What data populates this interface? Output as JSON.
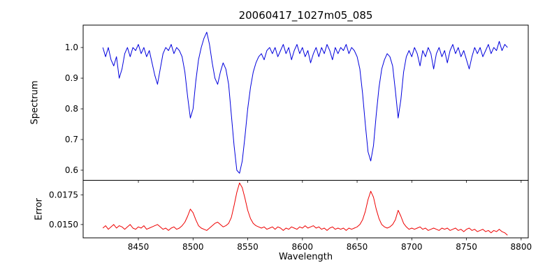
{
  "chart_data": {
    "type": "line",
    "title": "20060417_1027m05_085",
    "xlabel": "Wavelength",
    "x_start": 8417.5,
    "x_step": 2.5,
    "xlim": [
      8399.5,
      8806.5
    ],
    "xticks": [
      [
        8450,
        "8450"
      ],
      [
        8500,
        "8500"
      ],
      [
        8550,
        "8550"
      ],
      [
        8600,
        "8600"
      ],
      [
        8650,
        "8650"
      ],
      [
        8700,
        "8700"
      ],
      [
        8750,
        "8750"
      ],
      [
        8800,
        "8800"
      ]
    ],
    "legend": "none",
    "grid": false,
    "panels": [
      {
        "name": "spectrum",
        "ylabel": "Spectrum",
        "color": "#0000dd",
        "ylim": [
          0.567,
          1.073
        ],
        "yticks": [
          [
            1.0,
            "1.0"
          ],
          [
            0.9,
            "0.9"
          ],
          [
            0.8,
            "0.8"
          ],
          [
            0.7,
            "0.7"
          ],
          [
            0.6,
            "0.6"
          ]
        ],
        "values": [
          1.0,
          0.97,
          1.0,
          0.96,
          0.94,
          0.97,
          0.9,
          0.93,
          0.98,
          1.0,
          0.97,
          1.0,
          0.99,
          1.01,
          0.98,
          1.0,
          0.97,
          0.99,
          0.95,
          0.91,
          0.88,
          0.93,
          0.98,
          1.0,
          0.99,
          1.01,
          0.98,
          1.0,
          0.99,
          0.97,
          0.92,
          0.84,
          0.77,
          0.8,
          0.89,
          0.96,
          1.0,
          1.03,
          1.05,
          1.01,
          0.95,
          0.9,
          0.88,
          0.92,
          0.95,
          0.93,
          0.88,
          0.78,
          0.68,
          0.6,
          0.59,
          0.63,
          0.71,
          0.8,
          0.87,
          0.92,
          0.95,
          0.97,
          0.98,
          0.96,
          0.99,
          1.0,
          0.98,
          1.0,
          0.97,
          0.99,
          1.01,
          0.98,
          1.0,
          0.96,
          0.99,
          1.01,
          0.98,
          1.0,
          0.97,
          0.99,
          0.95,
          0.98,
          1.0,
          0.97,
          1.0,
          0.98,
          1.01,
          0.99,
          0.96,
          1.0,
          0.98,
          1.0,
          0.99,
          1.01,
          0.98,
          1.0,
          0.99,
          0.97,
          0.93,
          0.85,
          0.75,
          0.66,
          0.63,
          0.68,
          0.78,
          0.87,
          0.93,
          0.96,
          0.98,
          0.97,
          0.94,
          0.86,
          0.77,
          0.83,
          0.92,
          0.97,
          0.99,
          0.97,
          1.0,
          0.98,
          0.94,
          0.99,
          0.97,
          1.0,
          0.98,
          0.93,
          0.98,
          1.0,
          0.97,
          0.99,
          0.95,
          0.99,
          1.01,
          0.98,
          1.0,
          0.97,
          0.99,
          0.96,
          0.93,
          0.97,
          1.0,
          0.98,
          1.0,
          0.97,
          0.99,
          1.01,
          0.98,
          1.0,
          0.99,
          1.02,
          0.99,
          1.01,
          1.0
        ]
      },
      {
        "name": "error",
        "ylabel": "Error",
        "color": "#ee0000",
        "ylim": [
          0.01388,
          0.01872
        ],
        "yticks": [
          [
            0.0175,
            "0.0175"
          ],
          [
            0.015,
            "0.0150"
          ]
        ],
        "values": [
          0.0147,
          0.0149,
          0.0146,
          0.0148,
          0.015,
          0.0147,
          0.0149,
          0.0148,
          0.0146,
          0.0148,
          0.015,
          0.0147,
          0.0146,
          0.0148,
          0.0147,
          0.0149,
          0.0146,
          0.0147,
          0.0148,
          0.0149,
          0.015,
          0.0148,
          0.0146,
          0.0147,
          0.0145,
          0.0147,
          0.0148,
          0.0146,
          0.0147,
          0.0149,
          0.0152,
          0.0157,
          0.0163,
          0.016,
          0.0154,
          0.0149,
          0.0147,
          0.0146,
          0.0145,
          0.0147,
          0.0149,
          0.0151,
          0.0152,
          0.015,
          0.0148,
          0.0149,
          0.0151,
          0.0156,
          0.0166,
          0.0177,
          0.0185,
          0.0181,
          0.0172,
          0.0162,
          0.0155,
          0.0151,
          0.0149,
          0.0148,
          0.0147,
          0.0148,
          0.0146,
          0.0147,
          0.0148,
          0.0146,
          0.0148,
          0.0147,
          0.0145,
          0.0147,
          0.0146,
          0.0148,
          0.0147,
          0.0146,
          0.0148,
          0.0147,
          0.0149,
          0.0147,
          0.0148,
          0.0149,
          0.0147,
          0.0148,
          0.0146,
          0.0147,
          0.0145,
          0.0147,
          0.0148,
          0.0146,
          0.0147,
          0.0146,
          0.0147,
          0.0145,
          0.0147,
          0.0146,
          0.0147,
          0.0148,
          0.015,
          0.0154,
          0.0161,
          0.0171,
          0.0178,
          0.0173,
          0.0163,
          0.0155,
          0.015,
          0.0148,
          0.0147,
          0.0148,
          0.015,
          0.0154,
          0.0162,
          0.0157,
          0.0151,
          0.0148,
          0.0146,
          0.0147,
          0.0146,
          0.0147,
          0.0148,
          0.0146,
          0.0147,
          0.0145,
          0.0146,
          0.0147,
          0.0146,
          0.0145,
          0.0147,
          0.0146,
          0.0147,
          0.0145,
          0.0146,
          0.0147,
          0.0145,
          0.0146,
          0.0144,
          0.0146,
          0.0147,
          0.0145,
          0.0146,
          0.0144,
          0.0145,
          0.0146,
          0.0144,
          0.0145,
          0.0143,
          0.0145,
          0.0144,
          0.0146,
          0.0144,
          0.0143,
          0.0141
        ]
      }
    ]
  }
}
